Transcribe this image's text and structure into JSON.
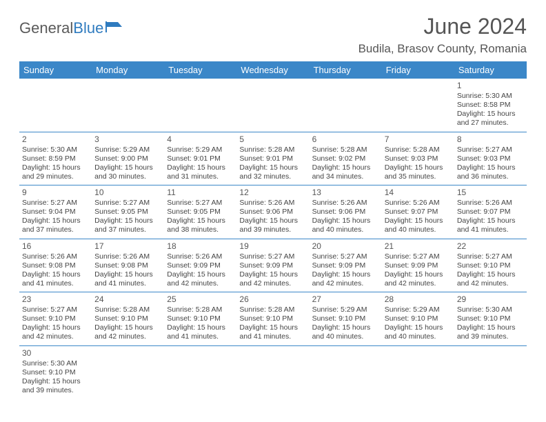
{
  "logo": {
    "general": "General",
    "blue": "Blue"
  },
  "title": "June 2024",
  "location": "Budila, Brasov County, Romania",
  "colors": {
    "header_bg": "#3b87c8",
    "header_text": "#ffffff",
    "border": "#3b87c8",
    "text": "#444444",
    "title_text": "#555555"
  },
  "weekdays": [
    "Sunday",
    "Monday",
    "Tuesday",
    "Wednesday",
    "Thursday",
    "Friday",
    "Saturday"
  ],
  "labels": {
    "sunrise": "Sunrise:",
    "sunset": "Sunset:",
    "daylight_prefix": "Daylight:",
    "daylight_hours": "15 hours",
    "daylight_and": "and",
    "daylight_minutes_suffix": "minutes."
  },
  "weeks": [
    [
      null,
      null,
      null,
      null,
      null,
      null,
      {
        "n": "1",
        "rise": "5:30 AM",
        "set": "8:58 PM",
        "min": "27"
      }
    ],
    [
      {
        "n": "2",
        "rise": "5:30 AM",
        "set": "8:59 PM",
        "min": "29"
      },
      {
        "n": "3",
        "rise": "5:29 AM",
        "set": "9:00 PM",
        "min": "30"
      },
      {
        "n": "4",
        "rise": "5:29 AM",
        "set": "9:01 PM",
        "min": "31"
      },
      {
        "n": "5",
        "rise": "5:28 AM",
        "set": "9:01 PM",
        "min": "32"
      },
      {
        "n": "6",
        "rise": "5:28 AM",
        "set": "9:02 PM",
        "min": "34"
      },
      {
        "n": "7",
        "rise": "5:28 AM",
        "set": "9:03 PM",
        "min": "35"
      },
      {
        "n": "8",
        "rise": "5:27 AM",
        "set": "9:03 PM",
        "min": "36"
      }
    ],
    [
      {
        "n": "9",
        "rise": "5:27 AM",
        "set": "9:04 PM",
        "min": "37"
      },
      {
        "n": "10",
        "rise": "5:27 AM",
        "set": "9:05 PM",
        "min": "37"
      },
      {
        "n": "11",
        "rise": "5:27 AM",
        "set": "9:05 PM",
        "min": "38"
      },
      {
        "n": "12",
        "rise": "5:26 AM",
        "set": "9:06 PM",
        "min": "39"
      },
      {
        "n": "13",
        "rise": "5:26 AM",
        "set": "9:06 PM",
        "min": "40"
      },
      {
        "n": "14",
        "rise": "5:26 AM",
        "set": "9:07 PM",
        "min": "40"
      },
      {
        "n": "15",
        "rise": "5:26 AM",
        "set": "9:07 PM",
        "min": "41"
      }
    ],
    [
      {
        "n": "16",
        "rise": "5:26 AM",
        "set": "9:08 PM",
        "min": "41"
      },
      {
        "n": "17",
        "rise": "5:26 AM",
        "set": "9:08 PM",
        "min": "41"
      },
      {
        "n": "18",
        "rise": "5:26 AM",
        "set": "9:09 PM",
        "min": "42"
      },
      {
        "n": "19",
        "rise": "5:27 AM",
        "set": "9:09 PM",
        "min": "42"
      },
      {
        "n": "20",
        "rise": "5:27 AM",
        "set": "9:09 PM",
        "min": "42"
      },
      {
        "n": "21",
        "rise": "5:27 AM",
        "set": "9:09 PM",
        "min": "42"
      },
      {
        "n": "22",
        "rise": "5:27 AM",
        "set": "9:10 PM",
        "min": "42"
      }
    ],
    [
      {
        "n": "23",
        "rise": "5:27 AM",
        "set": "9:10 PM",
        "min": "42"
      },
      {
        "n": "24",
        "rise": "5:28 AM",
        "set": "9:10 PM",
        "min": "42"
      },
      {
        "n": "25",
        "rise": "5:28 AM",
        "set": "9:10 PM",
        "min": "41"
      },
      {
        "n": "26",
        "rise": "5:28 AM",
        "set": "9:10 PM",
        "min": "41"
      },
      {
        "n": "27",
        "rise": "5:29 AM",
        "set": "9:10 PM",
        "min": "40"
      },
      {
        "n": "28",
        "rise": "5:29 AM",
        "set": "9:10 PM",
        "min": "40"
      },
      {
        "n": "29",
        "rise": "5:30 AM",
        "set": "9:10 PM",
        "min": "39"
      }
    ],
    [
      {
        "n": "30",
        "rise": "5:30 AM",
        "set": "9:10 PM",
        "min": "39"
      },
      null,
      null,
      null,
      null,
      null,
      null
    ]
  ]
}
